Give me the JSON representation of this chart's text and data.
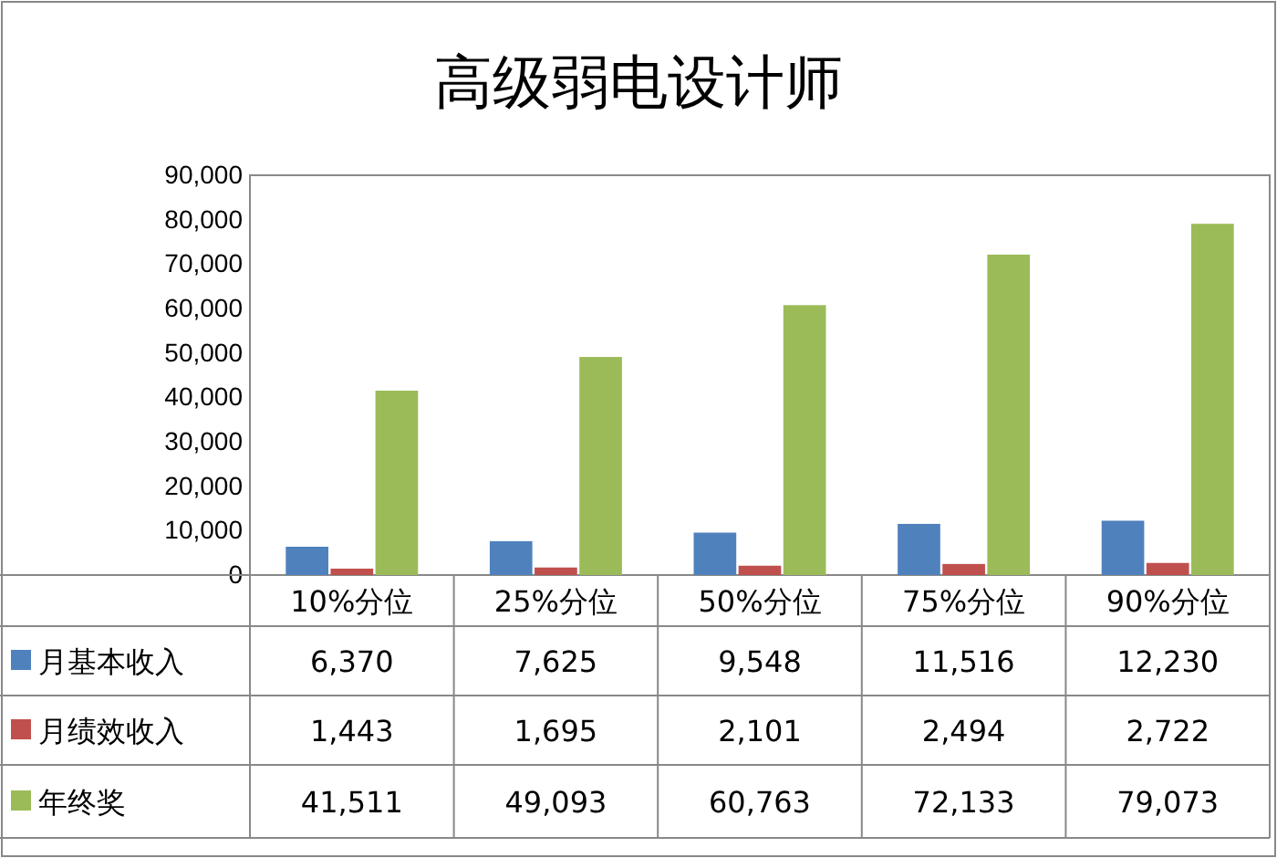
{
  "chart_data": {
    "type": "bar",
    "title": "高级弱电设计师",
    "categories": [
      "10%分位",
      "25%分位",
      "50%分位",
      "75%分位",
      "90%分位"
    ],
    "series": [
      {
        "name": "月基本收入",
        "color": "#4f81bd",
        "values": [
          6370,
          7625,
          9548,
          11516,
          12230
        ],
        "value_labels": [
          "6,370",
          "7,625",
          "9,548",
          "11,516",
          "12,230"
        ]
      },
      {
        "name": "月绩效收入",
        "color": "#c0504d",
        "values": [
          1443,
          1695,
          2101,
          2494,
          2722
        ],
        "value_labels": [
          "1,443",
          "1,695",
          "2,101",
          "2,494",
          "2,722"
        ]
      },
      {
        "name": "年终奖",
        "color": "#9bbb59",
        "values": [
          41511,
          49093,
          60763,
          72133,
          79073
        ],
        "value_labels": [
          "41,511",
          "49,093",
          "60,763",
          "72,133",
          "79,073"
        ]
      }
    ],
    "ylim": [
      0,
      90000
    ],
    "yticks": [
      0,
      {
        "value": 10000,
        "label": "10,000"
      },
      {
        "value": 20000,
        "label": "20,000"
      },
      {
        "value": 30000,
        "label": "30,000"
      },
      {
        "value": 40000,
        "label": "40,000"
      },
      {
        "value": 50000,
        "label": "50,000"
      },
      {
        "value": 60000,
        "label": "60,000"
      },
      {
        "value": 70000,
        "label": "70,000"
      },
      {
        "value": 80000,
        "label": "80,000"
      },
      {
        "value": 90000,
        "label": "90,000"
      }
    ],
    "legend": "bottom",
    "grid": false
  }
}
